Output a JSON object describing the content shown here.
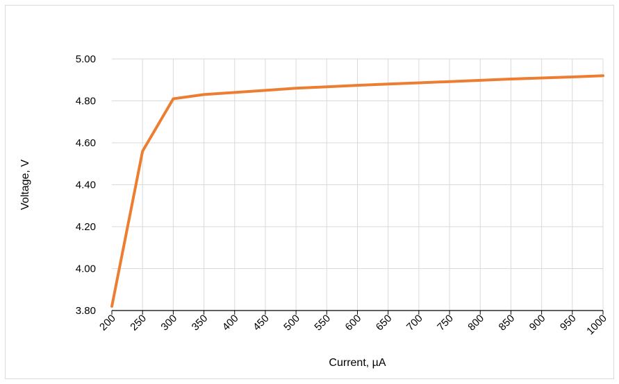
{
  "chart_data": {
    "type": "line",
    "title": "",
    "xlabel": "Current, µA",
    "ylabel": "Voltage, V",
    "x": [
      200,
      250,
      300,
      350,
      400,
      450,
      500,
      550,
      600,
      650,
      700,
      750,
      800,
      850,
      900,
      950,
      1000
    ],
    "x_tick_labels": [
      "200",
      "250",
      "300",
      "350",
      "400",
      "450",
      "500",
      "550",
      "600",
      "650",
      "700",
      "750",
      "800",
      "850",
      "900",
      "950",
      "1000"
    ],
    "y_tick_labels": [
      "3.80",
      "4.00",
      "4.20",
      "4.40",
      "4.60",
      "4.80",
      "5.00"
    ],
    "y_ticks": [
      3.8,
      4.0,
      4.2,
      4.4,
      4.6,
      4.8,
      5.0
    ],
    "ylim": [
      3.8,
      5.0
    ],
    "series": [
      {
        "values": [
          3.82,
          4.56,
          4.81,
          4.83,
          4.84,
          4.85,
          4.86,
          4.867,
          4.874,
          4.88,
          4.886,
          4.892,
          4.898,
          4.904,
          4.909,
          4.914,
          4.92
        ],
        "color": "#ED7D31"
      }
    ],
    "grid": true,
    "legend": "none"
  }
}
